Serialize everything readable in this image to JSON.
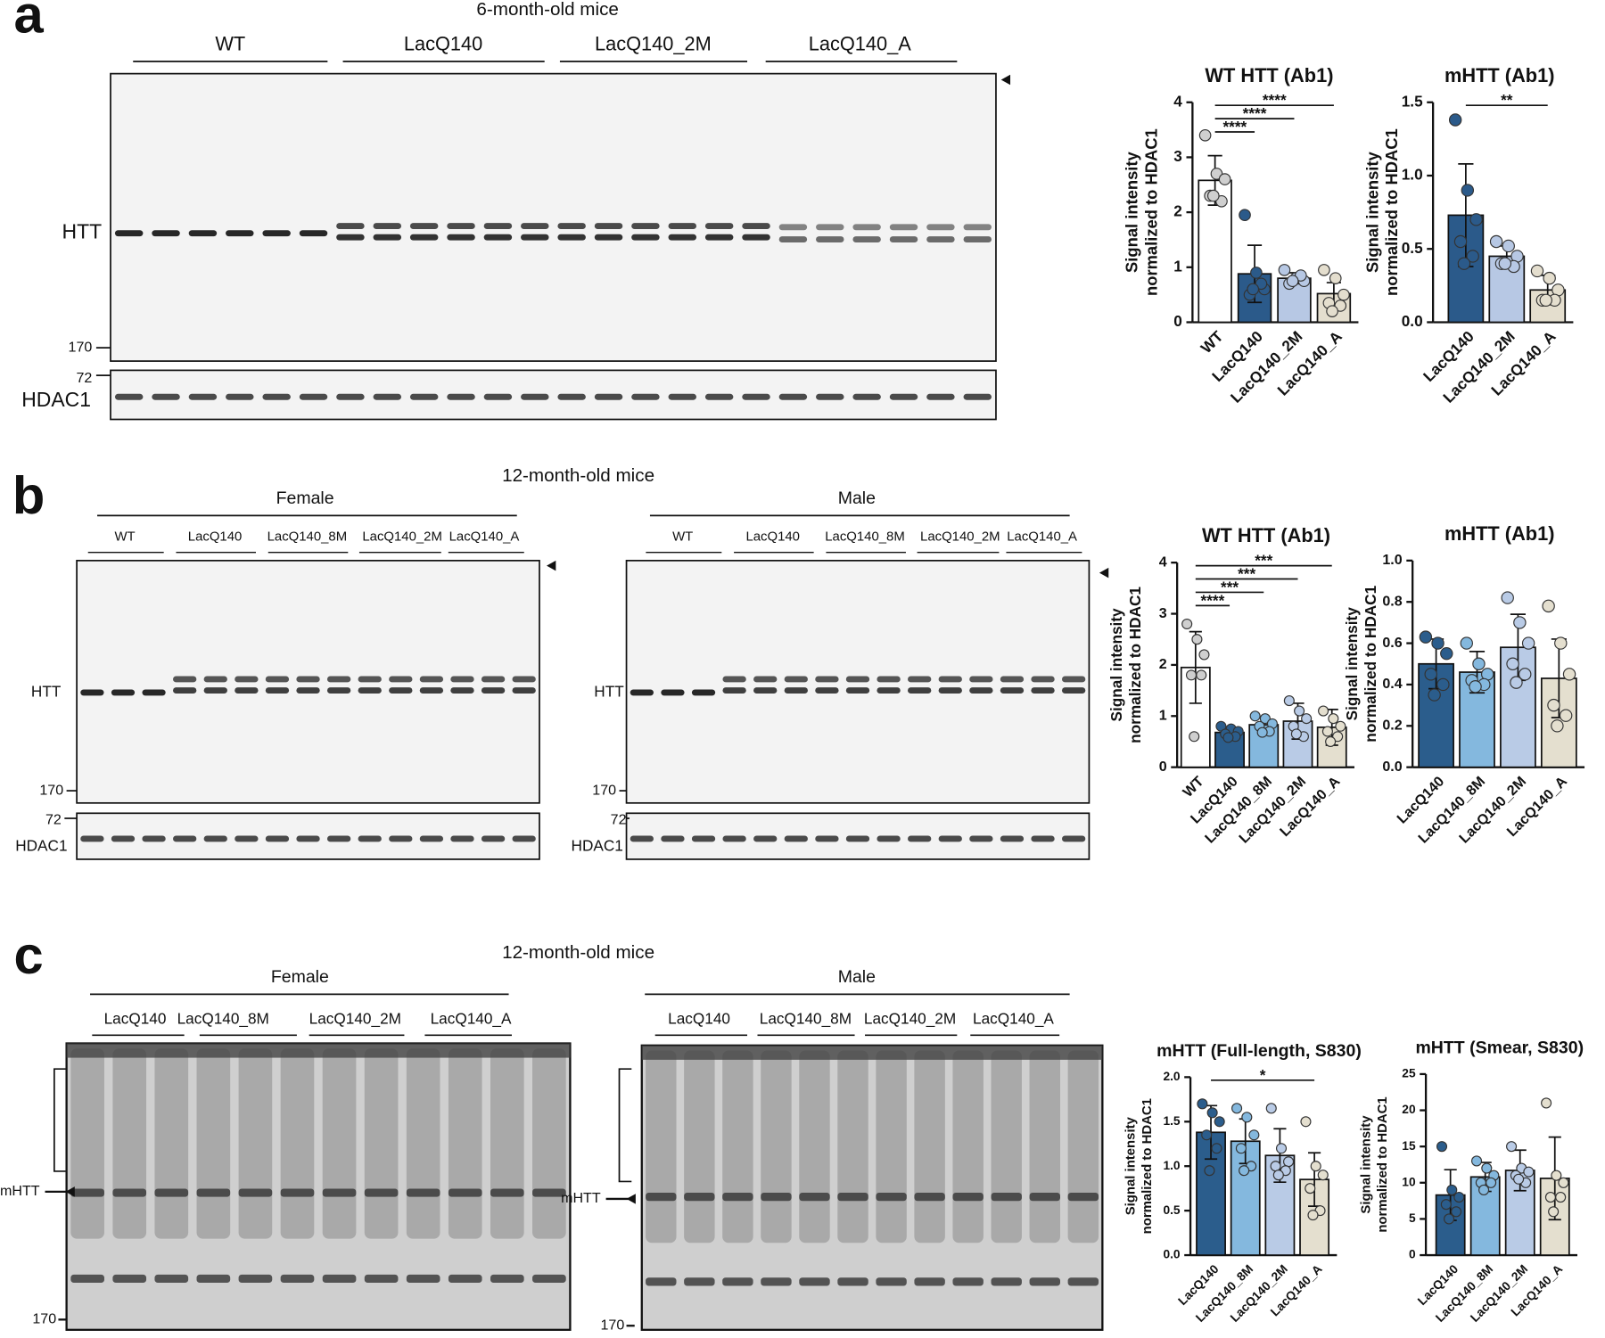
{
  "panels": {
    "a": {
      "letter": "a",
      "title": "6-month-old mice",
      "groups": [
        "WT",
        "LacQ140",
        "LacQ140_2M",
        "LacQ140_A"
      ],
      "markers": {
        "htt": "HTT",
        "kda170": "170",
        "kda72": "72",
        "hdac1": "HDAC1"
      }
    },
    "b": {
      "letter": "b",
      "title": "12-month-old mice",
      "sexes": [
        "Female",
        "Male"
      ],
      "groups": [
        "WT",
        "LacQ140",
        "LacQ140_8M",
        "LacQ140_2M",
        "LacQ140_A"
      ],
      "markers": {
        "htt": "HTT",
        "kda170": "170",
        "kda72": "72",
        "hdac1": "HDAC1"
      }
    },
    "c": {
      "letter": "c",
      "title": "12-month-old mice",
      "sexes": [
        "Female",
        "Male"
      ],
      "groups": [
        "LacQ140",
        "LacQ140_8M",
        "LacQ140_2M",
        "LacQ140_A"
      ],
      "markers": {
        "mhtt": "mHTT",
        "kda170": "170"
      }
    }
  },
  "chart_data": [
    {
      "type": "bar",
      "title": "WT HTT (Ab1)",
      "ylabel": [
        "Signal intensity",
        "normalized to HDAC1"
      ],
      "categories": [
        "WT",
        "LacQ140",
        "LacQ140_2M",
        "LacQ140_A"
      ],
      "values": [
        2.58,
        0.88,
        0.8,
        0.52
      ],
      "errors": [
        0.45,
        0.52,
        0.1,
        0.2
      ],
      "points": [
        [
          3.4,
          2.7,
          2.6,
          2.3,
          2.2,
          2.3
        ],
        [
          1.95,
          0.9,
          0.6,
          0.5,
          0.7,
          0.6
        ],
        [
          0.95,
          0.8,
          0.75,
          0.7,
          0.85,
          0.75
        ],
        [
          0.95,
          0.8,
          0.5,
          0.35,
          0.3,
          0.2
        ]
      ],
      "colors": [
        "#ffffff",
        "#2b5a8a",
        "#b7c8e4",
        "#e4dece"
      ],
      "point_colors": [
        "#cfcfcf",
        "#2b5a8a",
        "#b7c8e4",
        "#e4dece"
      ],
      "ylim": [
        0,
        4
      ],
      "yticks": [
        0,
        1,
        2,
        3,
        4
      ],
      "comparisons": [
        {
          "label": "****",
          "groups": [
            "WT",
            "LacQ140"
          ]
        },
        {
          "label": "****",
          "groups": [
            "WT",
            "LacQ140_2M"
          ]
        },
        {
          "label": "****",
          "groups": [
            "WT",
            "LacQ140_A"
          ]
        }
      ]
    },
    {
      "type": "bar",
      "title": "mHTT (Ab1)",
      "ylabel": [
        "Signal intensity",
        "normalized to HDAC1"
      ],
      "categories": [
        "LacQ140",
        "LacQ140_2M",
        "LacQ140_A"
      ],
      "values": [
        0.73,
        0.45,
        0.22
      ],
      "errors": [
        0.35,
        0.07,
        0.1
      ],
      "points": [
        [
          1.38,
          0.9,
          0.7,
          0.55,
          0.45,
          0.4
        ],
        [
          0.55,
          0.52,
          0.45,
          0.4,
          0.38,
          0.4
        ],
        [
          0.35,
          0.3,
          0.22,
          0.15,
          0.15,
          0.15
        ]
      ],
      "colors": [
        "#2b5a8a",
        "#b7c8e4",
        "#e4dece"
      ],
      "point_colors": [
        "#2b5a8a",
        "#b7c8e4",
        "#e4dece"
      ],
      "ylim": [
        0,
        1.5
      ],
      "yticks": [
        {
          "value": 0,
          "label": "0.0"
        },
        {
          "value": 0.5,
          "label": "0.5"
        },
        {
          "value": 1,
          "label": "1.0"
        },
        {
          "value": 1.5,
          "label": "1.5"
        }
      ],
      "comparisons": [
        {
          "label": "**",
          "groups": [
            "LacQ140",
            "LacQ140_A"
          ]
        }
      ]
    },
    {
      "type": "bar",
      "title": "WT HTT (Ab1)",
      "ylabel": [
        "Signal intensity",
        "normalized to HDAC1"
      ],
      "categories": [
        "WT",
        "LacQ140",
        "LacQ140_8M",
        "LacQ140_2M",
        "LacQ140_A"
      ],
      "values": [
        1.95,
        0.68,
        0.83,
        0.9,
        0.78
      ],
      "errors": [
        0.7,
        0.1,
        0.15,
        0.35,
        0.35
      ],
      "points": [
        [
          2.8,
          2.5,
          2.2,
          1.8,
          1.8,
          0.6
        ],
        [
          0.8,
          0.75,
          0.7,
          0.65,
          0.6,
          0.58
        ],
        [
          1.0,
          0.95,
          0.85,
          0.8,
          0.7,
          0.68
        ],
        [
          1.3,
          1.1,
          0.95,
          0.8,
          0.6,
          0.65
        ],
        [
          1.1,
          0.95,
          0.8,
          0.7,
          0.6,
          0.5
        ]
      ],
      "colors": [
        "#ffffff",
        "#2b5d8c",
        "#84b8de",
        "#b9cbe6",
        "#e4dfcf"
      ],
      "point_colors": [
        "#cfcfcf",
        "#2b5d8c",
        "#84b8de",
        "#b9cbe6",
        "#e4dfcf"
      ],
      "ylim": [
        0,
        4
      ],
      "yticks": [
        0,
        1,
        2,
        3,
        4
      ],
      "comparisons": [
        {
          "label": "****",
          "groups": [
            "WT",
            "LacQ140"
          ]
        },
        {
          "label": "***",
          "groups": [
            "WT",
            "LacQ140_8M"
          ]
        },
        {
          "label": "***",
          "groups": [
            "WT",
            "LacQ140_2M"
          ]
        },
        {
          "label": "***",
          "groups": [
            "WT",
            "LacQ140_A"
          ]
        }
      ]
    },
    {
      "type": "bar",
      "title": "mHTT (Ab1)",
      "ylabel": [
        "Signal intensity",
        "normalized to HDAC1"
      ],
      "categories": [
        "LacQ140",
        "LacQ140_8M",
        "LacQ140_2M",
        "LacQ140_A"
      ],
      "values": [
        0.5,
        0.46,
        0.58,
        0.43
      ],
      "errors": [
        0.12,
        0.1,
        0.16,
        0.19
      ],
      "points": [
        [
          0.63,
          0.6,
          0.55,
          0.45,
          0.4,
          0.35
        ],
        [
          0.6,
          0.5,
          0.45,
          0.42,
          0.4,
          0.39
        ],
        [
          0.82,
          0.7,
          0.6,
          0.5,
          0.45,
          0.41
        ],
        [
          0.78,
          0.6,
          0.45,
          0.3,
          0.25,
          0.2
        ]
      ],
      "colors": [
        "#2b5d8c",
        "#84b8de",
        "#b9cbe6",
        "#e4dfcf"
      ],
      "point_colors": [
        "#2b5d8c",
        "#84b8de",
        "#b9cbe6",
        "#e4dfcf"
      ],
      "ylim": [
        0,
        1
      ],
      "yticks": [
        {
          "value": 0,
          "label": "0.0"
        },
        0.2,
        0.4,
        0.6,
        0.8,
        {
          "value": 1,
          "label": "1.0"
        }
      ],
      "comparisons": []
    },
    {
      "type": "bar",
      "title": "mHTT (Full-length, S830)",
      "ylabel": [
        "Signal intensity",
        "normalized to HDAC1"
      ],
      "categories": [
        "LacQ140",
        "LacQ140_8M",
        "LacQ140_2M",
        "LacQ140_A"
      ],
      "values": [
        1.38,
        1.28,
        1.12,
        0.85
      ],
      "errors": [
        0.3,
        0.25,
        0.3,
        0.3
      ],
      "points": [
        [
          1.7,
          1.6,
          1.5,
          1.35,
          1.2,
          0.95
        ],
        [
          1.65,
          1.55,
          1.35,
          1.2,
          1.0,
          0.95
        ],
        [
          1.65,
          1.2,
          1.05,
          1.0,
          0.95,
          0.9
        ],
        [
          1.5,
          1.0,
          0.9,
          0.75,
          0.5,
          0.45
        ]
      ],
      "colors": [
        "#2b5d8c",
        "#84b8de",
        "#b9cbe6",
        "#e4dfcf"
      ],
      "point_colors": [
        "#2b5d8c",
        "#84b8de",
        "#b9cbe6",
        "#e4dfcf"
      ],
      "ylim": [
        0,
        2
      ],
      "yticks": [
        {
          "value": 0,
          "label": "0.0"
        },
        0.5,
        {
          "value": 1,
          "label": "1.0"
        },
        1.5,
        {
          "value": 2,
          "label": "2.0"
        }
      ],
      "comparisons": [
        {
          "label": "*",
          "groups": [
            "LacQ140",
            "LacQ140_A"
          ]
        }
      ]
    },
    {
      "type": "bar",
      "title": "mHTT (Smear, S830)",
      "ylabel": [
        "Signal intensity",
        "normalized to HDAC1"
      ],
      "categories": [
        "LacQ140",
        "LacQ140_8M",
        "LacQ140_2M",
        "LacQ140_A"
      ],
      "values": [
        8.3,
        10.8,
        11.7,
        10.6
      ],
      "errors": [
        3.5,
        2,
        2.8,
        5.7
      ],
      "points": [
        [
          15,
          9,
          8,
          7,
          6,
          5
        ],
        [
          13,
          12,
          11,
          10,
          10,
          9
        ],
        [
          15,
          12,
          11.5,
          11,
          10,
          10.5
        ],
        [
          21,
          11,
          10,
          8,
          8,
          6
        ]
      ],
      "colors": [
        "#2b5d8c",
        "#84b8de",
        "#b9cbe6",
        "#e4dfcf"
      ],
      "point_colors": [
        "#2b5d8c",
        "#84b8de",
        "#b9cbe6",
        "#e4dfcf"
      ],
      "ylim": [
        0,
        25
      ],
      "yticks": [
        0,
        5,
        10,
        15,
        20,
        25
      ],
      "comparisons": []
    }
  ]
}
